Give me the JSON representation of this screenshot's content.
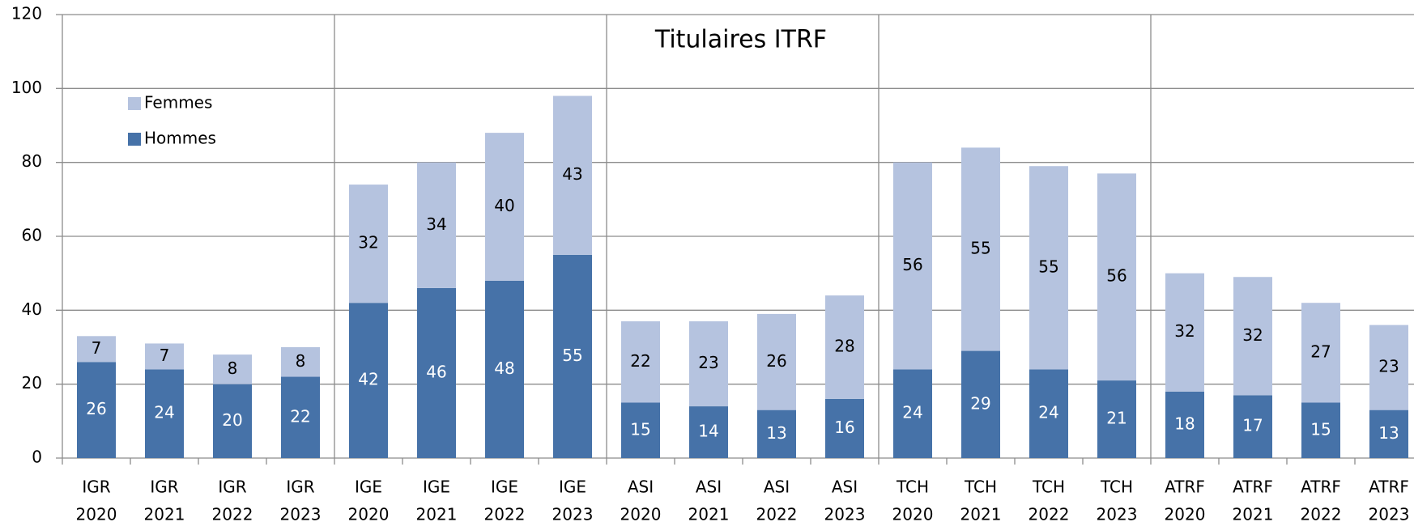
{
  "chart_data": {
    "type": "stacked_bar",
    "title": "Titulaires ITRF",
    "categories": [
      [
        "IGR",
        "2020"
      ],
      [
        "IGR",
        "2021"
      ],
      [
        "IGR",
        "2022"
      ],
      [
        "IGR",
        "2023"
      ],
      [
        "IGE",
        "2020"
      ],
      [
        "IGE",
        "2021"
      ],
      [
        "IGE",
        "2022"
      ],
      [
        "IGE",
        "2023"
      ],
      [
        "ASI",
        "2020"
      ],
      [
        "ASI",
        "2021"
      ],
      [
        "ASI",
        "2022"
      ],
      [
        "ASI",
        "2023"
      ],
      [
        "TCH",
        "2020"
      ],
      [
        "TCH",
        "2021"
      ],
      [
        "TCH",
        "2022"
      ],
      [
        "TCH",
        "2023"
      ],
      [
        "ATRF",
        "2020"
      ],
      [
        "ATRF",
        "2021"
      ],
      [
        "ATRF",
        "2022"
      ],
      [
        "ATRF",
        "2023"
      ]
    ],
    "series": [
      {
        "name": "Hommes",
        "color": "#4672a8",
        "values": [
          26,
          24,
          20,
          22,
          42,
          46,
          48,
          55,
          15,
          14,
          13,
          16,
          24,
          29,
          24,
          21,
          18,
          17,
          15,
          13
        ]
      },
      {
        "name": "Femmes",
        "color": "#b5c3df",
        "values": [
          7,
          7,
          8,
          8,
          32,
          34,
          40,
          43,
          22,
          23,
          26,
          28,
          56,
          55,
          55,
          56,
          32,
          32,
          27,
          23
        ]
      }
    ],
    "ylim": [
      0,
      120
    ],
    "yticks": [
      0,
      20,
      40,
      60,
      80,
      100,
      120
    ],
    "grid": true,
    "legend": "upper left"
  }
}
